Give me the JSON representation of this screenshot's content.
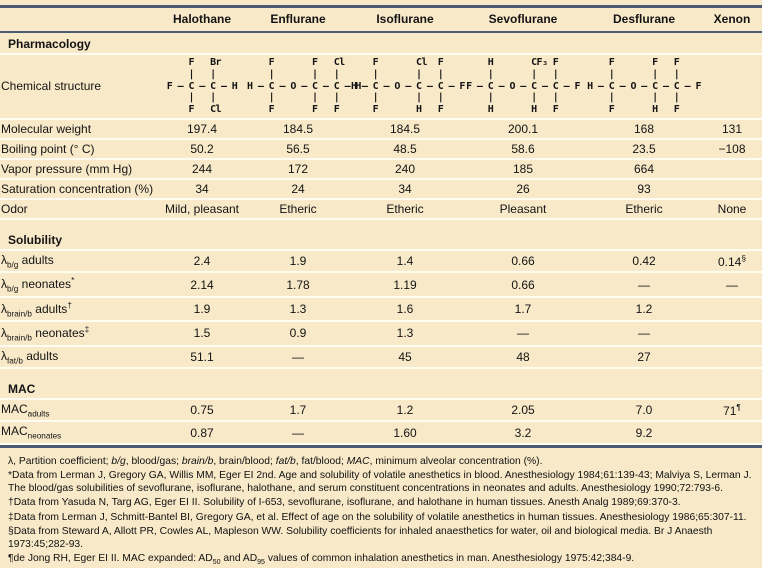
{
  "page": {
    "background_color": "#f8e9c8",
    "rule_color": "#4c5b74",
    "row_separator_color": "#fffdf2"
  },
  "table": {
    "columns": [
      "Halothane",
      "Enflurane",
      "Isoflurane",
      "Sevoflurane",
      "Desflurane",
      "Xenon"
    ],
    "sections": [
      {
        "title": "Pharmacology",
        "gap": false,
        "rows": [
          {
            "label": [
              {
                "t": "Chemical structure"
              }
            ],
            "cells": [
              {
                "lines": [
                  "    F   Br",
                  "    |   |",
                  "F – C – C – H",
                  "    |   |",
                  "    F   Cl"
                ]
              },
              {
                "lines": [
                  "    F       F   Cl",
                  "    |       |   |",
                  "H – C – O – C – C – H",
                  "    |       |   |",
                  "    F       F   F"
                ]
              },
              {
                "lines": [
                  "    F       Cl  F",
                  "    |       |   |",
                  "H – C – O – C – C – F",
                  "    |       |   |",
                  "    F       H   F"
                ]
              },
              {
                "lines": [
                  "    H       CF₃ F",
                  "    |       |   |",
                  "F – C – O – C – C – F",
                  "    |       |   |",
                  "    H       H   F"
                ]
              },
              {
                "lines": [
                  "    F       F   F",
                  "    |       |   |",
                  "H – C – O – C – C – F",
                  "    |       |   |",
                  "    F       H   F"
                ]
              },
              null
            ]
          },
          {
            "label": [
              {
                "t": "Molecular weight"
              }
            ],
            "cells": [
              "197.4",
              "184.5",
              "184.5",
              "200.1",
              "168",
              "131"
            ]
          },
          {
            "label": [
              {
                "t": "Boiling point (° C)"
              }
            ],
            "cells": [
              "50.2",
              "56.5",
              "48.5",
              "58.6",
              "23.5",
              "−108"
            ]
          },
          {
            "label": [
              {
                "t": "Vapor pressure (mm Hg)"
              }
            ],
            "cells": [
              "244",
              "172",
              "240",
              "185",
              "664",
              null
            ]
          },
          {
            "label": [
              {
                "t": "Saturation concentration (%)"
              }
            ],
            "cells": [
              "34",
              "24",
              "34",
              "26",
              "93",
              null
            ]
          },
          {
            "label": [
              {
                "t": "Odor"
              }
            ],
            "cells": [
              "Mild, pleasant",
              "Etheric",
              "Etheric",
              "Pleasant",
              "Etheric",
              "None"
            ]
          }
        ]
      },
      {
        "title": "Solubility",
        "gap": true,
        "rows": [
          {
            "label": [
              {
                "t": "λ"
              },
              {
                "t": "b/g",
                "sub": true
              },
              {
                "t": " adults"
              }
            ],
            "cells": [
              "2.4",
              "1.9",
              "1.4",
              "0.66",
              "0.42",
              {
                "v": "0.14",
                "sup": "§"
              }
            ]
          },
          {
            "label": [
              {
                "t": "λ"
              },
              {
                "t": "b/g",
                "sub": true
              },
              {
                "t": " neonates"
              },
              {
                "t": "*",
                "sup": true
              }
            ],
            "cells": [
              "2.14",
              "1.78",
              "1.19",
              "0.66",
              "—",
              "—"
            ]
          },
          {
            "label": [
              {
                "t": "λ"
              },
              {
                "t": "brain/b",
                "sub": true
              },
              {
                "t": " adults"
              },
              {
                "t": "†",
                "sup": true
              }
            ],
            "cells": [
              "1.9",
              "1.3",
              "1.6",
              "1.7",
              "1.2",
              null
            ]
          },
          {
            "label": [
              {
                "t": "λ"
              },
              {
                "t": "brain/b",
                "sub": true
              },
              {
                "t": " neonates"
              },
              {
                "t": "‡",
                "sup": true
              }
            ],
            "cells": [
              "1.5",
              "0.9",
              "1.3",
              "—",
              "—",
              null
            ]
          },
          {
            "label": [
              {
                "t": "λ"
              },
              {
                "t": "fat/b",
                "sub": true
              },
              {
                "t": " adults"
              }
            ],
            "cells": [
              "51.1",
              "—",
              "45",
              "48",
              "27",
              null
            ]
          }
        ]
      },
      {
        "title": "MAC",
        "gap": true,
        "rows": [
          {
            "label": [
              {
                "t": "MAC"
              },
              {
                "t": "adults",
                "sub": true
              }
            ],
            "cells": [
              "0.75",
              "1.7",
              "1.2",
              "2.05",
              "7.0",
              {
                "v": "71",
                "sup": "¶"
              }
            ]
          },
          {
            "label": [
              {
                "t": "MAC"
              },
              {
                "t": "neonates",
                "sub": true
              }
            ],
            "cells": [
              "0.87",
              "—",
              "1.60",
              "3.2",
              "9.2",
              null
            ]
          }
        ]
      }
    ]
  },
  "footnotes": [
    [
      {
        "t": "λ, Partition coefficient; "
      },
      {
        "t": "b/g",
        "i": true
      },
      {
        "t": ", blood/gas; "
      },
      {
        "t": "brain/b",
        "i": true
      },
      {
        "t": ", brain/blood; "
      },
      {
        "t": "fat/b",
        "i": true
      },
      {
        "t": ", fat/blood; "
      },
      {
        "t": "MAC",
        "i": true
      },
      {
        "t": ", minimum alveolar concentration (%)."
      }
    ],
    [
      {
        "t": "*Data from Lerman J, Gregory GA, Willis MM, Eger EI 2nd. Age and solubility of volatile anesthetics in blood. Anesthesiology 1984;61:139-43; Malviya S, Lerman J. The blood/gas solubilities of sevoflurane, isoflurane, halothane, and serum constituent concentrations in neonates and adults. Anesthesiology 1990;72:793-6."
      }
    ],
    [
      {
        "t": "†Data from Yasuda N, Targ AG, Eger EI II. Solubility of I-653, sevoflurane, isoflurane, and halothane in human tissues. Anesth Analg 1989;69:370-3."
      }
    ],
    [
      {
        "t": "‡Data from Lerman J, Schmitt-Bantel BI, Gregory GA, et al. Effect of age on the solubility of volatile anesthetics in human tissues. Anesthesiology 1986;65:307-11."
      }
    ],
    [
      {
        "t": "§Data from Steward A, Allott PR, Cowles AL, Mapleson WW. Solubility coefficients for inhaled anaesthetics for water, oil and biological media. Br J Anaesth 1973:45;282-93."
      }
    ],
    [
      {
        "t": "¶de Jong RH, Eger EI II. MAC expanded: AD"
      },
      {
        "t": "50",
        "sub": true
      },
      {
        "t": " and AD"
      },
      {
        "t": "95",
        "sub": true
      },
      {
        "t": " values of common inhalation anesthetics in man. Anesthesiology 1975:42;384-9."
      }
    ]
  ]
}
